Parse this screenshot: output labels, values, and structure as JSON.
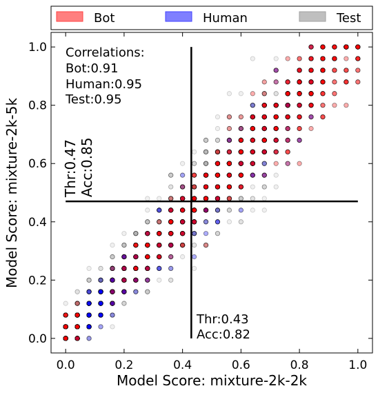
{
  "chart_data": {
    "type": "scatter",
    "xlabel": "Model Score: mixture-2k-2k",
    "ylabel": "Model Score: mixture-2k-5k",
    "xlim": [
      -0.05,
      1.05
    ],
    "ylim": [
      -0.05,
      1.05
    ],
    "xticks": [
      0.0,
      0.2,
      0.4,
      0.6,
      0.8,
      1.0
    ],
    "yticks": [
      0.0,
      0.2,
      0.4,
      0.6,
      0.8,
      1.0
    ],
    "xtick_labels": [
      "0.0",
      "0.2",
      "0.4",
      "0.6",
      "0.8",
      "1.0"
    ],
    "ytick_labels": [
      "0.0",
      "0.2",
      "0.4",
      "0.6",
      "0.8",
      "1.0"
    ],
    "grid": false,
    "legend_position": "top, outside plot",
    "series": [
      {
        "name": "Bot",
        "color": "#ff0000",
        "alpha": 0.35
      },
      {
        "name": "Human",
        "color": "#0000ff",
        "alpha": 0.35
      },
      {
        "name": "Test",
        "color": "#808080",
        "alpha": 0.12
      }
    ],
    "correlations": {
      "title": "Correlations:",
      "lines": [
        "Bot:0.91",
        "Human:0.95",
        "Test:0.95"
      ]
    },
    "threshold_x": {
      "value": 0.43,
      "thr_label": "Thr:0.43",
      "acc_label": "Acc:0.82"
    },
    "threshold_y": {
      "value": 0.47,
      "thr_label": "Thr:0.47",
      "acc_label": "Acc:0.85"
    }
  }
}
